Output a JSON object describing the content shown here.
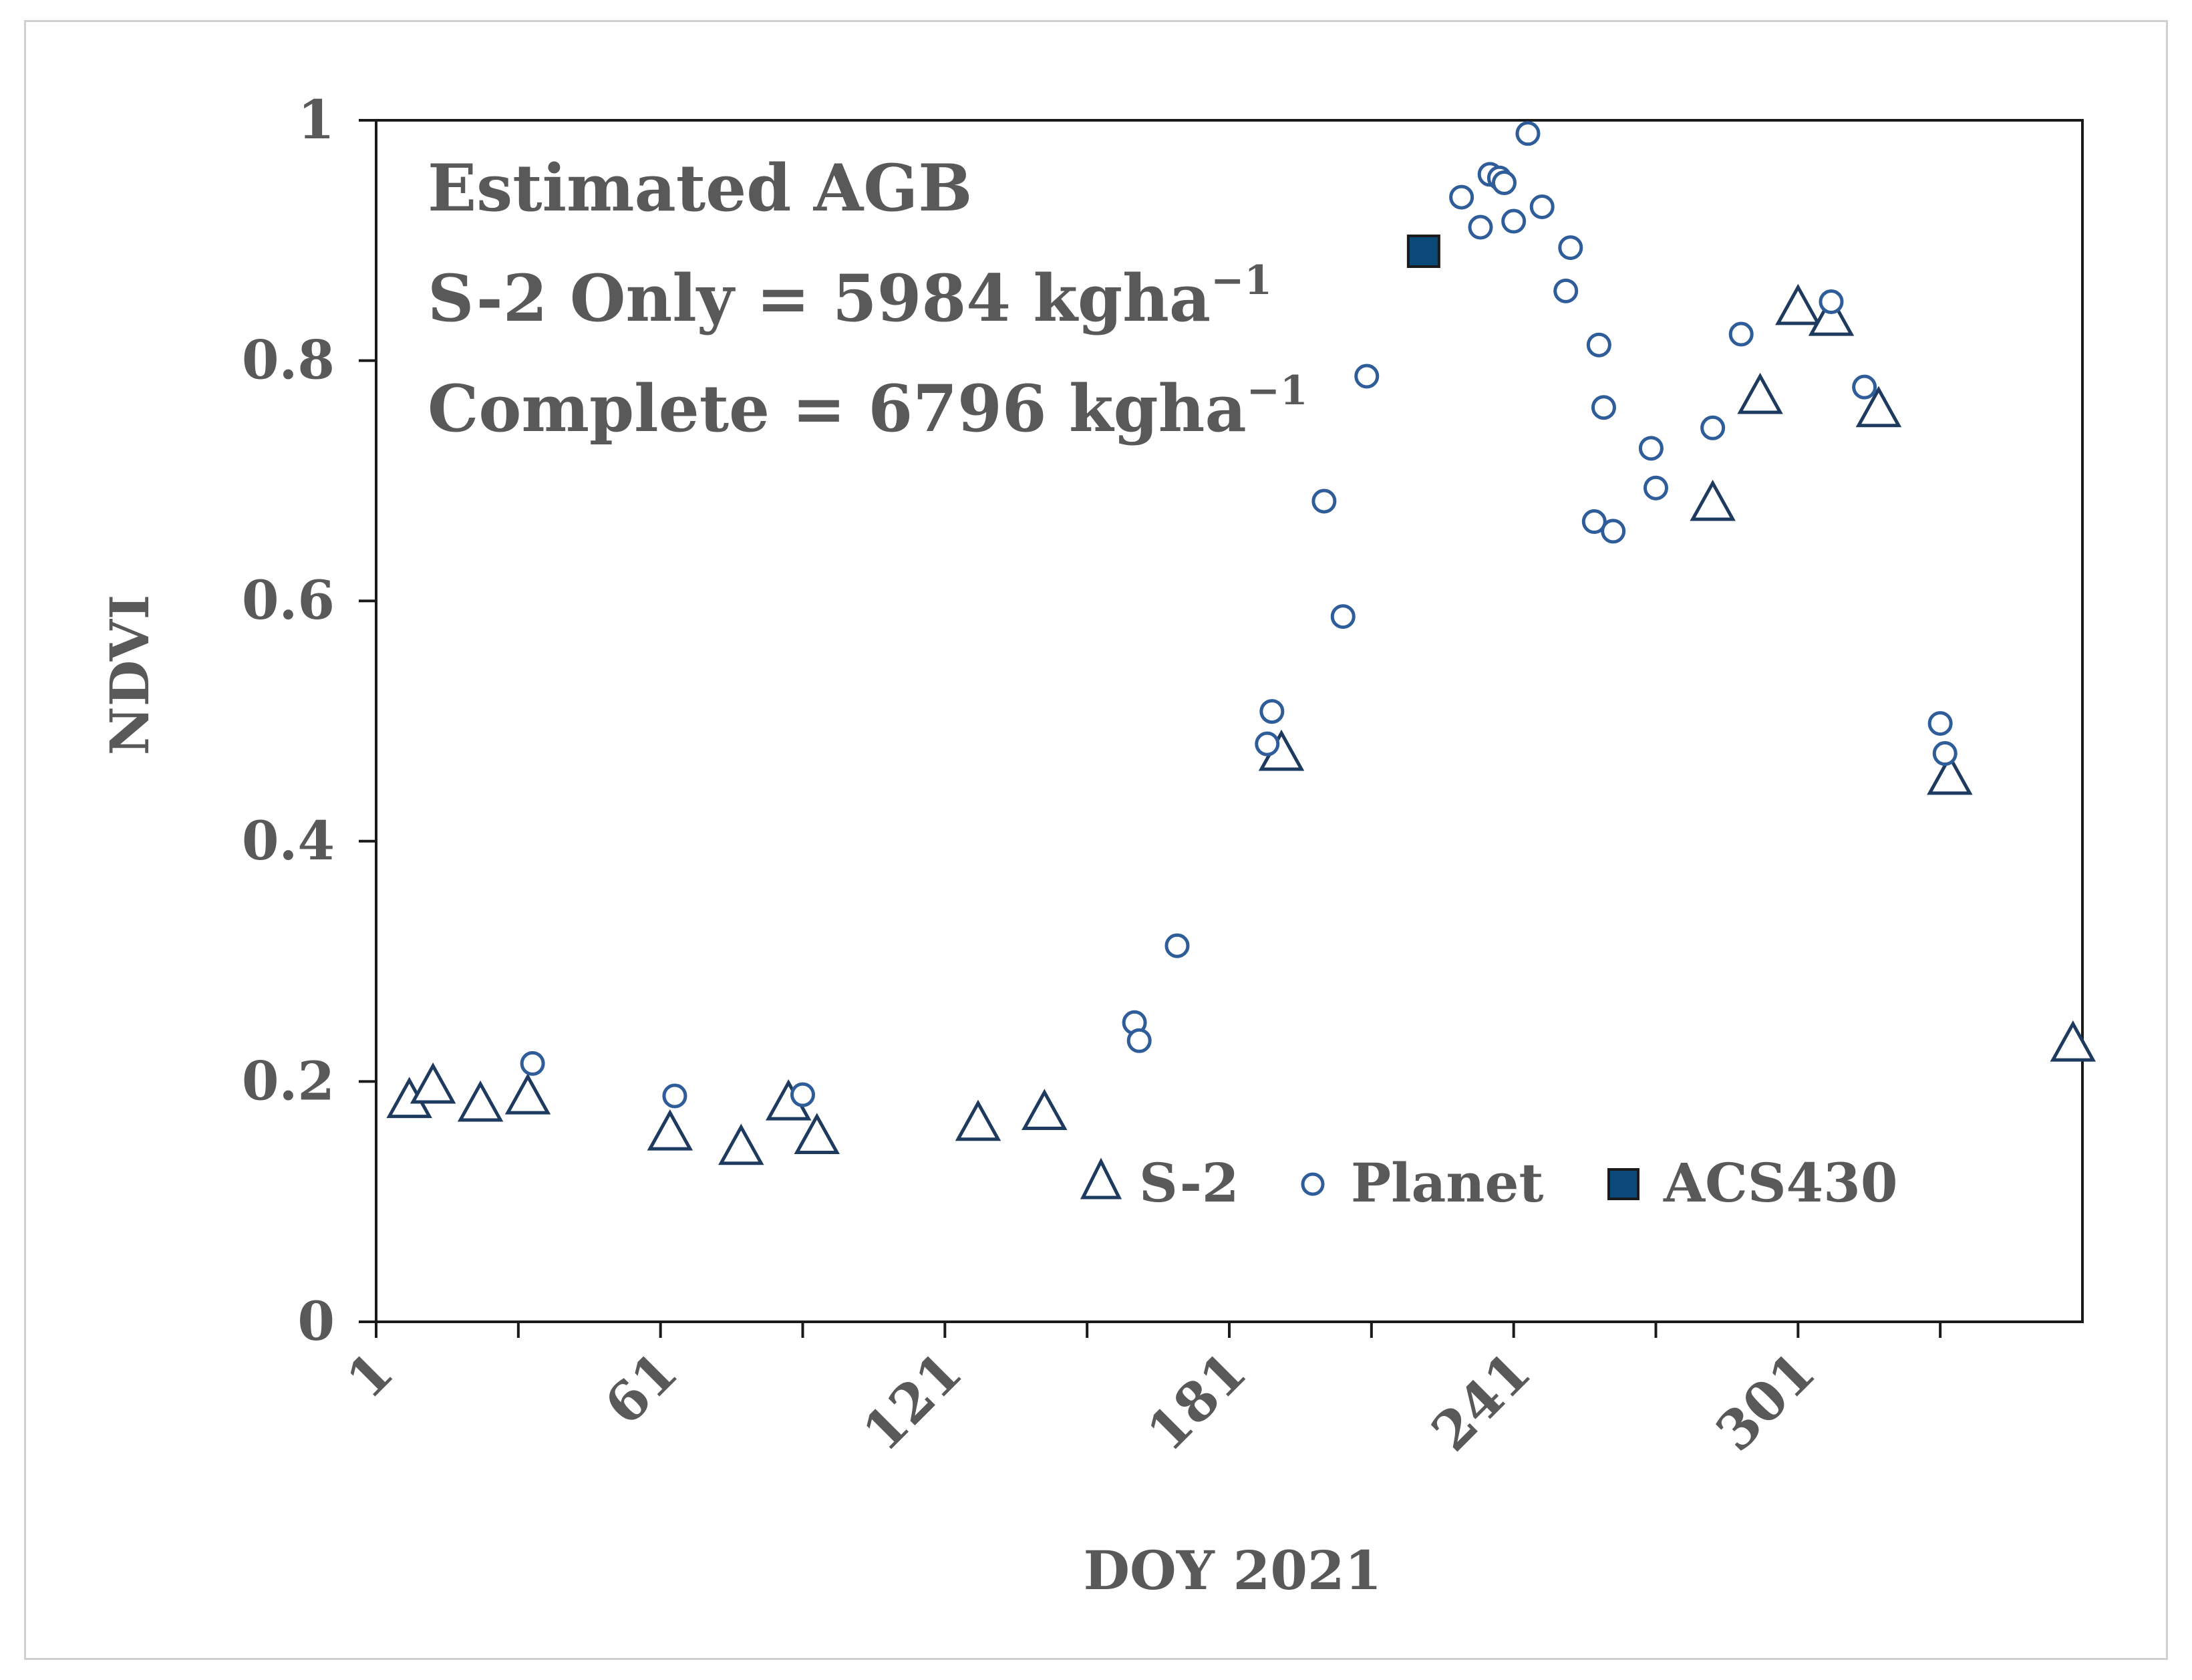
{
  "chart_data": {
    "type": "scatter",
    "title": "",
    "xlabel": "DOY 2021",
    "ylabel": "NDVI",
    "xlim": [
      1,
      361
    ],
    "ylim": [
      0,
      1
    ],
    "xticks": [
      1,
      61,
      121,
      181,
      241,
      301
    ],
    "x_minor_ticks": [
      31,
      91,
      151,
      211,
      271,
      331
    ],
    "yticks": [
      0,
      0.2,
      0.4,
      0.6,
      0.8,
      1
    ],
    "ytick_labels": [
      "0",
      "0.2",
      "0.4",
      "0.6",
      "0.8",
      "1"
    ],
    "grid": false,
    "legend_position": "bottom-right",
    "annotation": {
      "line1": "Estimated AGB",
      "line2_prefix": "S-2 Only = 5984 kgha",
      "line3_prefix": "Complete = 6796 kgha",
      "superscript": "−1"
    },
    "series": [
      {
        "name": "S-2",
        "marker": "triangle",
        "color": "#1f3a5f",
        "x": [
          8,
          13,
          23,
          33,
          63,
          78,
          88,
          94,
          128,
          142,
          192,
          283,
          293,
          301,
          308,
          318,
          333,
          359
        ],
        "y": [
          0.186,
          0.198,
          0.183,
          0.189,
          0.159,
          0.147,
          0.184,
          0.156,
          0.167,
          0.176,
          0.475,
          0.683,
          0.772,
          0.846,
          0.837,
          0.761,
          0.455,
          0.233
        ]
      },
      {
        "name": "Planet",
        "marker": "circle",
        "color": "#2e5d9a",
        "x": [
          34,
          64,
          91,
          161,
          162,
          170,
          189,
          190,
          201,
          205,
          210,
          230,
          234,
          236,
          238,
          239,
          241,
          244,
          247,
          252,
          253,
          258,
          259,
          260,
          262,
          270,
          271,
          283,
          289,
          308,
          315,
          331,
          332
        ],
        "y": [
          0.215,
          0.188,
          0.189,
          0.249,
          0.234,
          0.313,
          0.481,
          0.508,
          0.683,
          0.587,
          0.787,
          0.936,
          0.911,
          0.955,
          0.952,
          0.948,
          0.916,
          0.989,
          0.928,
          0.858,
          0.894,
          0.666,
          0.813,
          0.761,
          0.658,
          0.727,
          0.694,
          0.744,
          0.822,
          0.849,
          0.778,
          0.498,
          0.473
        ]
      },
      {
        "name": "ACS430",
        "marker": "square",
        "color": "#0b4a78",
        "x": [
          222
        ],
        "y": [
          0.891
        ]
      }
    ]
  }
}
